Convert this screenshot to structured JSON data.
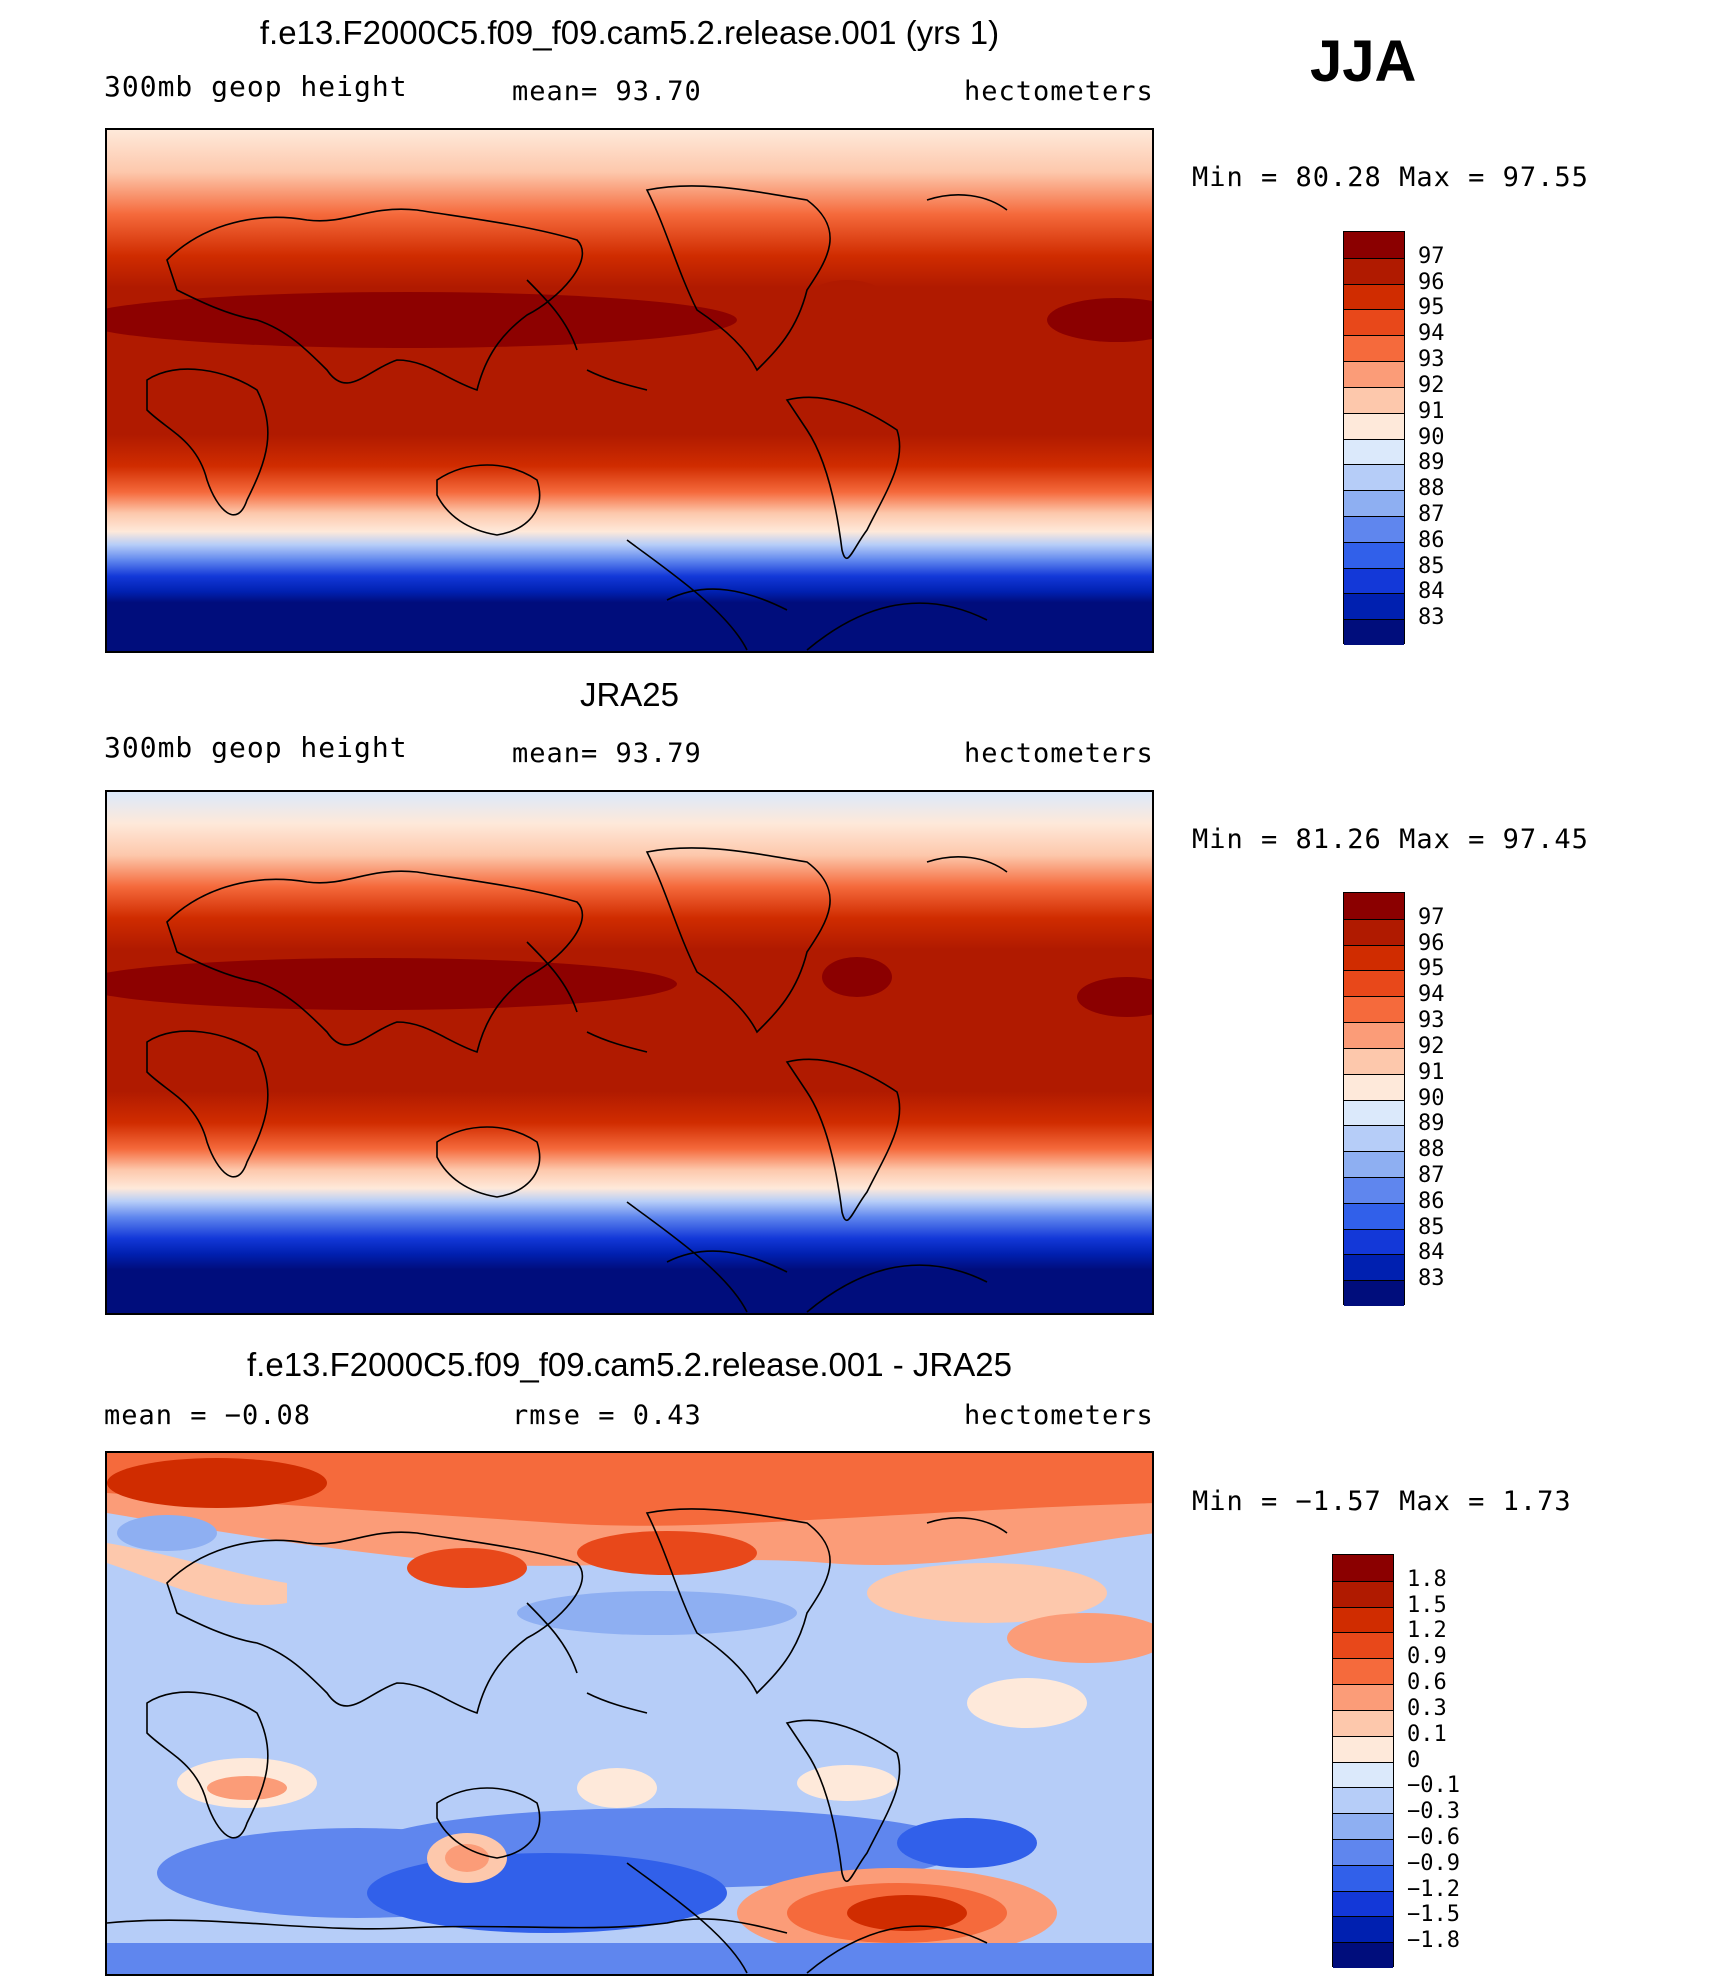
{
  "season": "JJA",
  "panels": [
    {
      "title": "f.e13.F2000C5.f09_f09.cam5.2.release.001 (yrs 1)",
      "left_label": "300mb  geop  height",
      "mid_label": "mean=   93.70",
      "right_label": "hectometers",
      "minmax": "Min =   80.28 Max =   97.55",
      "colorbar": {
        "labels": [
          "97",
          "96",
          "95",
          "94",
          "93",
          "92",
          "91",
          "90",
          "89",
          "88",
          "87",
          "86",
          "85",
          "84",
          "83"
        ],
        "colors": [
          "#8b0000",
          "#b01a00",
          "#d02c00",
          "#e8481a",
          "#f56a3c",
          "#fb9c78",
          "#fdc8ac",
          "#fee9da",
          "#dbe9fb",
          "#b6cdf8",
          "#8eaff2",
          "#5f86ee",
          "#3160ea",
          "#1338d8",
          "#0020b0",
          "#000d7c"
        ]
      }
    },
    {
      "title": "JRA25",
      "left_label": "300mb  geop  height",
      "mid_label": "mean=   93.79",
      "right_label": "hectometers",
      "minmax": "Min =   81.26 Max =   97.45",
      "colorbar": {
        "labels": [
          "97",
          "96",
          "95",
          "94",
          "93",
          "92",
          "91",
          "90",
          "89",
          "88",
          "87",
          "86",
          "85",
          "84",
          "83"
        ],
        "colors": [
          "#8b0000",
          "#b01a00",
          "#d02c00",
          "#e8481a",
          "#f56a3c",
          "#fb9c78",
          "#fdc8ac",
          "#fee9da",
          "#dbe9fb",
          "#b6cdf8",
          "#8eaff2",
          "#5f86ee",
          "#3160ea",
          "#1338d8",
          "#0020b0",
          "#000d7c"
        ]
      }
    },
    {
      "title": "f.e13.F2000C5.f09_f09.cam5.2.release.001 - JRA25",
      "left_label": "mean =   −0.08",
      "mid_label": "rmse =    0.43",
      "right_label": "hectometers",
      "minmax": "Min =   −1.57 Max =    1.73",
      "colorbar": {
        "labels": [
          "1.8",
          "1.5",
          "1.2",
          "0.9",
          "0.6",
          "0.3",
          "0.1",
          "0",
          "−0.1",
          "−0.3",
          "−0.6",
          "−0.9",
          "−1.2",
          "−1.5",
          "−1.8"
        ],
        "colors": [
          "#8b0000",
          "#b01a00",
          "#d02c00",
          "#e8481a",
          "#f56a3c",
          "#fb9c78",
          "#fdc8ac",
          "#fee9da",
          "#dbe9fb",
          "#b6cdf8",
          "#8eaff2",
          "#5f86ee",
          "#3160ea",
          "#1338d8",
          "#0020b0",
          "#000d7c"
        ]
      }
    }
  ],
  "colors": {
    "background": "#ffffff",
    "coastline": "#000000"
  }
}
